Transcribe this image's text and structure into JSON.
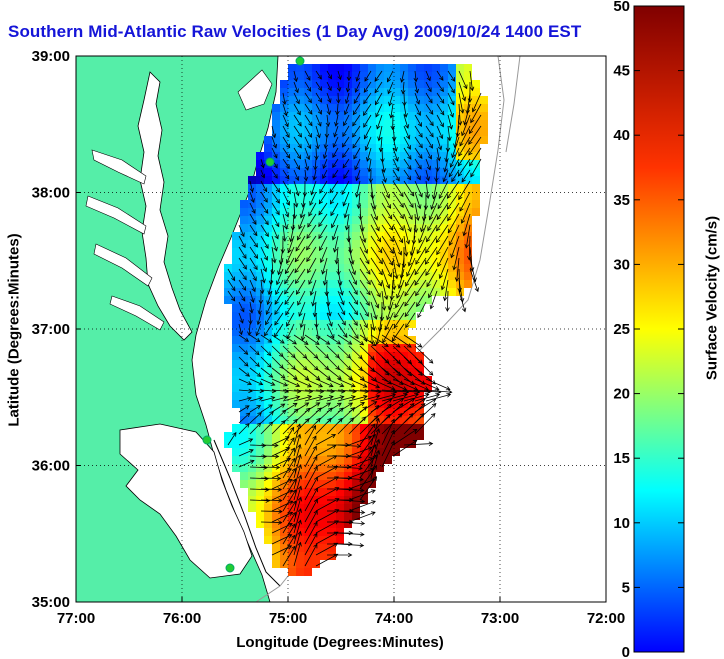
{
  "title": "Southern Mid-Atlantic Raw Velocities (1 Day Avg) 2009/10/24 1400 EST",
  "map": {
    "x_axis_label": "Longitude (Degrees:Minutes)",
    "y_axis_label": "Latitude (Degrees:Minutes)",
    "x_ticks": [
      "77:00",
      "76:00",
      "75:00",
      "74:00",
      "73:00",
      "72:00"
    ],
    "y_ticks": [
      "39:00",
      "38:00",
      "37:00",
      "36:00",
      "35:00"
    ],
    "lon_range": [
      -77,
      -72
    ],
    "lat_range": [
      35,
      39
    ],
    "grid": "dotted",
    "colors": {
      "land": "#55eea8",
      "water": "#ffffff",
      "coast": "#000000",
      "sites": "#22cc33"
    }
  },
  "colorbar": {
    "label": "Surface Velocity (cm/s)",
    "min": 0,
    "max": 50,
    "ticks": [
      "50",
      "45",
      "40",
      "35",
      "30",
      "25",
      "20",
      "15",
      "10",
      "5",
      "0"
    ],
    "colormap": "jet"
  }
}
